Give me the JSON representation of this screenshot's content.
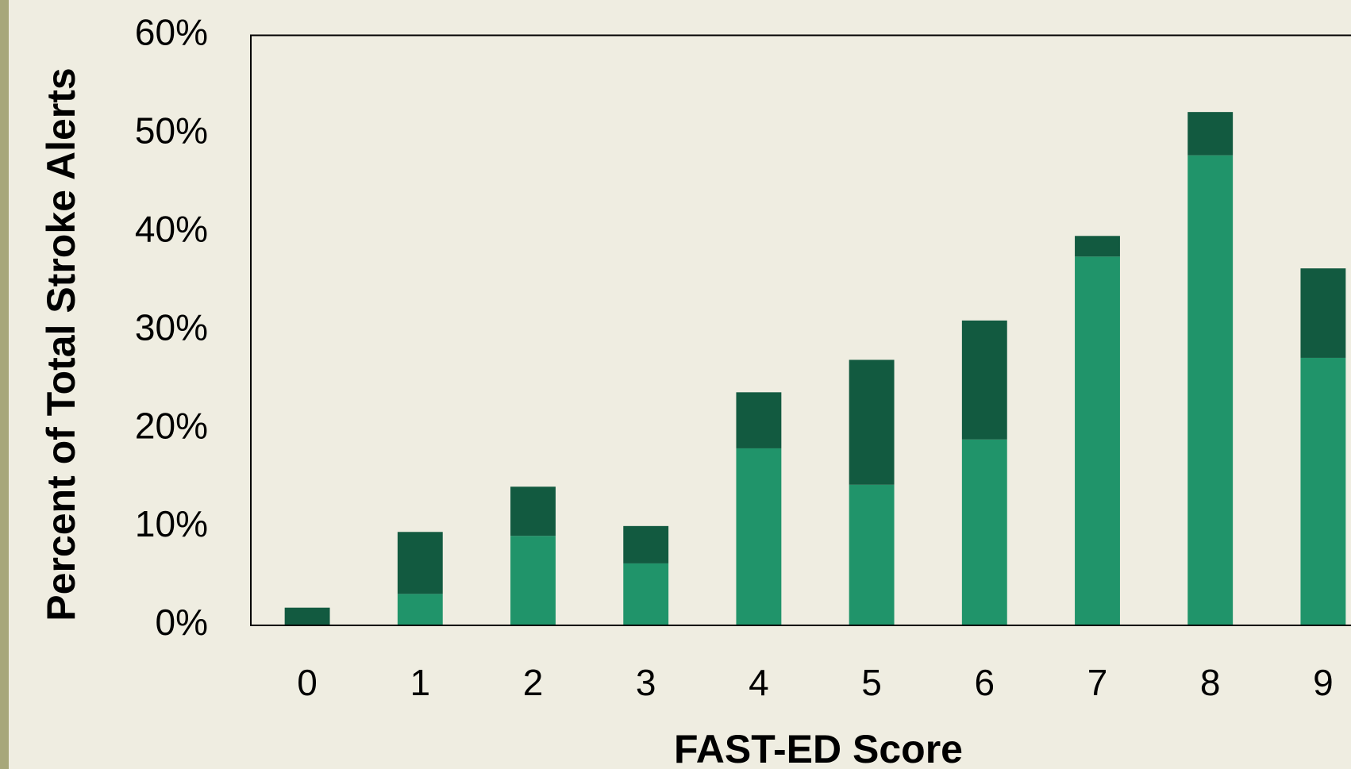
{
  "chart_data": {
    "type": "stacked-bar",
    "x_label": "FAST-ED Score",
    "y_label": "Percent of Total Stroke Alerts",
    "categories": [
      "0",
      "1",
      "2",
      "3",
      "4",
      "5",
      "6",
      "7",
      "8",
      "9"
    ],
    "series": [
      {
        "color": "#20946a",
        "values": [
          0,
          3.2,
          9.1,
          6.3,
          18.0,
          14.3,
          18.9,
          37.5,
          47.8,
          27.2
        ]
      },
      {
        "color": "#125a40",
        "values": [
          1.8,
          6.3,
          5.0,
          3.8,
          5.7,
          12.7,
          12.1,
          2.1,
          4.4,
          9.1
        ]
      }
    ],
    "ylim": [
      0,
      60
    ],
    "yticks": [
      {
        "value": 0,
        "label": "0%"
      },
      {
        "value": 10,
        "label": "10%"
      },
      {
        "value": 20,
        "label": "20%"
      },
      {
        "value": 30,
        "label": "30%"
      },
      {
        "value": 40,
        "label": "40%"
      },
      {
        "value": 50,
        "label": "50%"
      },
      {
        "value": 60,
        "label": "60%"
      }
    ],
    "grid": false
  }
}
